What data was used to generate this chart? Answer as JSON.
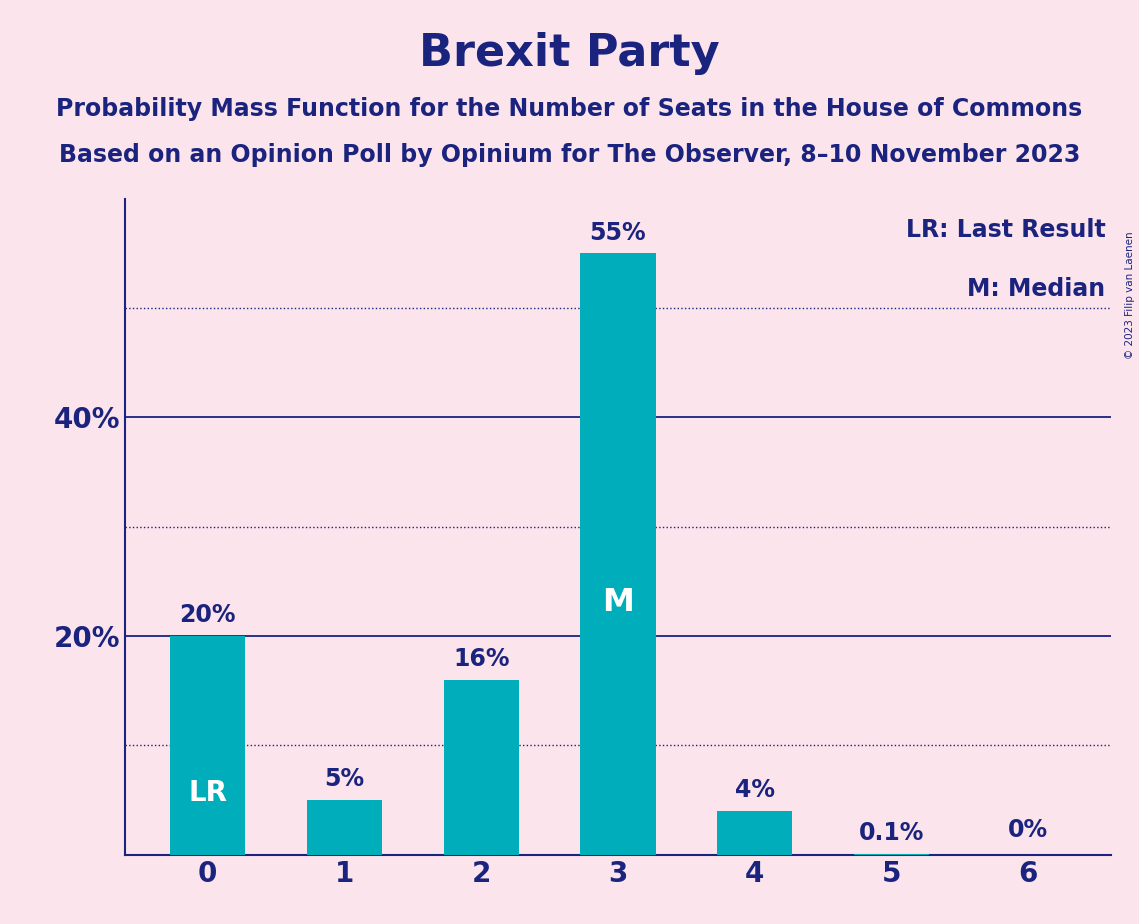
{
  "title": "Brexit Party",
  "subtitle1": "Probability Mass Function for the Number of Seats in the House of Commons",
  "subtitle2": "Based on an Opinion Poll by Opinium for The Observer, 8–10 November 2023",
  "copyright": "© 2023 Filip van Laenen",
  "categories": [
    0,
    1,
    2,
    3,
    4,
    5,
    6
  ],
  "values": [
    20,
    5,
    16,
    55,
    4,
    0.1,
    0
  ],
  "bar_color": "#00ADBB",
  "bar_labels": [
    "20%",
    "5%",
    "16%",
    "55%",
    "4%",
    "0.1%",
    "0%"
  ],
  "background_color": "#fce4ec",
  "title_color": "#1a237e",
  "axis_color": "#1a237e",
  "ytick_labels": [
    "20%",
    "40%"
  ],
  "ytick_values": [
    20,
    40
  ],
  "solid_line_values": [
    20,
    40
  ],
  "dotted_line_values": [
    10,
    30,
    50
  ],
  "lr_bar_index": 0,
  "median_bar_index": 3,
  "legend_lr": "LR: Last Result",
  "legend_m": "M: Median",
  "ylim": [
    0,
    60
  ],
  "title_fontsize": 32,
  "subtitle_fontsize": 17,
  "bar_label_fontsize": 17,
  "axis_label_fontsize": 20,
  "legend_fontsize": 17,
  "bar_width": 0.55
}
